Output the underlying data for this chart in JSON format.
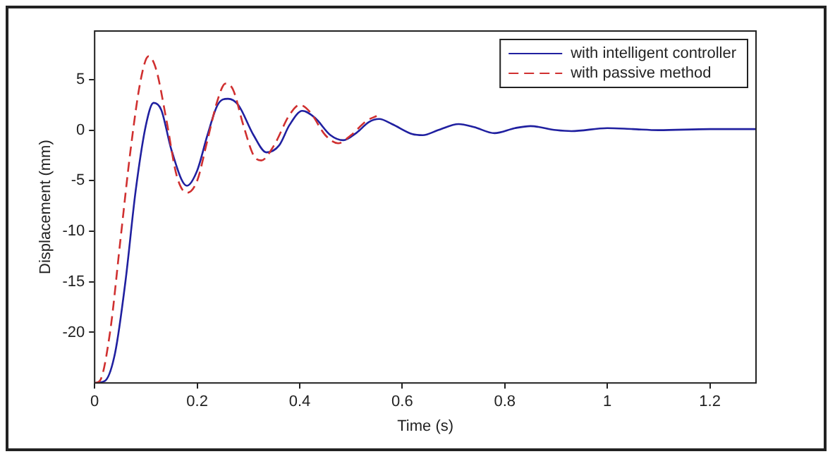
{
  "chart_data": {
    "type": "line",
    "xlabel": "Time (s)",
    "ylabel": "Displacement (mm)",
    "xlim": [
      0,
      1.29
    ],
    "ylim": [
      -25,
      9.8
    ],
    "xticks": [
      0,
      0.2,
      0.4,
      0.6,
      0.8,
      1,
      1.2
    ],
    "yticks": [
      -20,
      -15,
      -10,
      -5,
      0,
      5
    ],
    "grid": false,
    "legend": "top right",
    "marker": "none",
    "series": [
      {
        "name": "with intelligent controller",
        "color": "#2020a0",
        "line_style": "solid",
        "x": [
          0,
          0.02,
          0.04,
          0.06,
          0.08,
          0.1,
          0.115,
          0.13,
          0.15,
          0.18,
          0.2,
          0.22,
          0.24,
          0.26,
          0.28,
          0.31,
          0.335,
          0.36,
          0.38,
          0.405,
          0.43,
          0.46,
          0.485,
          0.51,
          0.535,
          0.555,
          0.58,
          0.62,
          0.64,
          0.67,
          0.71,
          0.74,
          0.78,
          0.82,
          0.85,
          0.9,
          0.93,
          1.0,
          1.05,
          1.1,
          1.2,
          1.29
        ],
        "values": [
          -25,
          -24.8,
          -22,
          -15,
          -6,
          0.5,
          2.7,
          2,
          -2,
          -5.5,
          -4,
          -0.5,
          2.5,
          3.1,
          2.5,
          -0.5,
          -2.2,
          -1.5,
          0.5,
          1.9,
          1.2,
          -0.5,
          -1,
          -0.3,
          0.8,
          1.1,
          0.6,
          -0.4,
          -0.5,
          0,
          0.6,
          0.3,
          -0.3,
          0.2,
          0.4,
          0,
          -0.1,
          0.2,
          0.1,
          0,
          0.1,
          0.1
        ]
      },
      {
        "name": "with passive method",
        "color": "#d03030",
        "line_style": "dashed",
        "x": [
          0,
          0.01,
          0.03,
          0.05,
          0.07,
          0.09,
          0.105,
          0.12,
          0.14,
          0.16,
          0.18,
          0.2,
          0.22,
          0.24,
          0.255,
          0.27,
          0.29,
          0.31,
          0.325,
          0.35,
          0.38,
          0.4,
          0.42,
          0.45,
          0.475,
          0.5,
          0.53,
          0.55
        ],
        "values": [
          -25,
          -24.8,
          -20,
          -11,
          -2,
          5,
          7.3,
          6,
          1,
          -4.5,
          -6.2,
          -5,
          -1,
          3,
          4.6,
          4,
          0.5,
          -2.5,
          -3,
          -1.5,
          1.5,
          2.5,
          1.8,
          -0.5,
          -1.3,
          -0.5,
          0.9,
          1.4
        ]
      }
    ]
  }
}
